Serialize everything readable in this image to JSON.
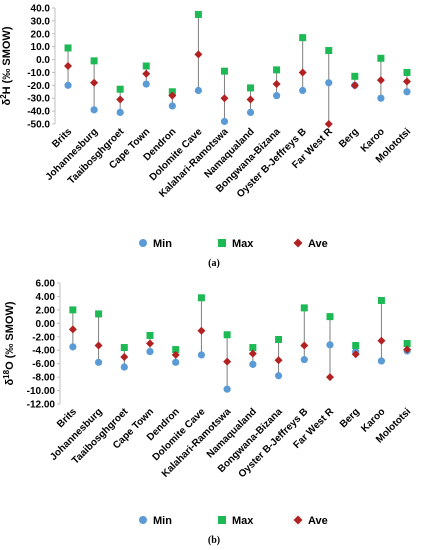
{
  "colors": {
    "min": "#5b9bd5",
    "max": "#1db954",
    "ave": "#b22222",
    "range_line": "#7f7f7f",
    "axis": "#bfbfbf"
  },
  "chart_data": [
    {
      "type": "scatter",
      "panel_label": "(a)",
      "ylabel_main": "δ",
      "ylabel_sup": "2",
      "ylabel_rest": "H (‰ SMOW)",
      "ylim": [
        -50,
        40
      ],
      "yticks": [
        "40.0",
        "30.0",
        "20.0",
        "10.0",
        "0.0",
        "-10.0",
        "-20.0",
        "-30.0",
        "-40.0",
        "-50.0"
      ],
      "ytick_values": [
        40,
        30,
        20,
        10,
        0,
        -10,
        -20,
        -30,
        -40,
        -50
      ],
      "categories": [
        "Brits",
        "Johannesburg",
        "Taaibosghgroet",
        "Cape Town",
        "Dendron",
        "Dolomite Cave",
        "Kalahari-Ramotswa",
        "Namaqualand",
        "Bongwana-Bizana",
        "Oyster B-Jeffreys B",
        "Far West R",
        "Berg",
        "Karoo",
        "Molototsi"
      ],
      "series": [
        {
          "name": "Min",
          "values": [
            -20,
            -39,
            -41,
            -19,
            -36,
            -24,
            -48,
            -41,
            -28,
            -24,
            -18,
            -20,
            -30,
            -25
          ]
        },
        {
          "name": "Max",
          "values": [
            9,
            -1,
            -23,
            -5,
            -25,
            35,
            -9,
            -22,
            -8,
            17,
            7,
            -13,
            1,
            -10
          ]
        },
        {
          "name": "Ave",
          "values": [
            -5,
            -18,
            -31,
            -11,
            -28,
            4,
            -30,
            -31,
            -19,
            -10,
            -50,
            -20,
            -16,
            -17
          ]
        }
      ],
      "legend": [
        "Min",
        "Max",
        "Ave"
      ]
    },
    {
      "type": "scatter",
      "panel_label": "(b)",
      "ylabel_main": "δ",
      "ylabel_sup": "18",
      "ylabel_rest": "O (‰ SMOW)",
      "ylim": [
        -12,
        6
      ],
      "yticks": [
        "6.00",
        "4.00",
        "2.00",
        "0.00",
        "-2.00",
        "-4.00",
        "-6.00",
        "-8.00",
        "-10.00",
        "-12.00"
      ],
      "ytick_values": [
        6,
        4,
        2,
        0,
        -2,
        -4,
        -6,
        -8,
        -10,
        -12
      ],
      "categories": [
        "Brits",
        "Johannesburg",
        "Taaibosghgroet",
        "Cape Town",
        "Dendron",
        "Dolomite Cave",
        "Kalahari-Ramotswa",
        "Namaqualand",
        "Bongwana-Bizana",
        "Oyster B-Jeffreys B",
        "Far West R",
        "Berg",
        "Karoo",
        "Molototsi"
      ],
      "series": [
        {
          "name": "Min",
          "values": [
            -3.5,
            -5.8,
            -6.5,
            -4.2,
            -5.8,
            -4.7,
            -9.8,
            -6.1,
            -7.8,
            -5.4,
            -3.2,
            -4.2,
            -5.6,
            -4.1
          ]
        },
        {
          "name": "Max",
          "values": [
            2.0,
            1.4,
            -3.6,
            -1.8,
            -3.9,
            3.8,
            -1.7,
            -3.6,
            -2.4,
            2.3,
            1.0,
            -3.3,
            3.4,
            -3.0
          ]
        },
        {
          "name": "Ave",
          "values": [
            -0.9,
            -3.3,
            -5.0,
            -3.0,
            -4.7,
            -1.1,
            -5.7,
            -4.5,
            -5.5,
            -3.3,
            -8.0,
            -4.6,
            -2.6,
            -3.9
          ]
        }
      ],
      "legend": [
        "Min",
        "Max",
        "Ave"
      ]
    }
  ]
}
